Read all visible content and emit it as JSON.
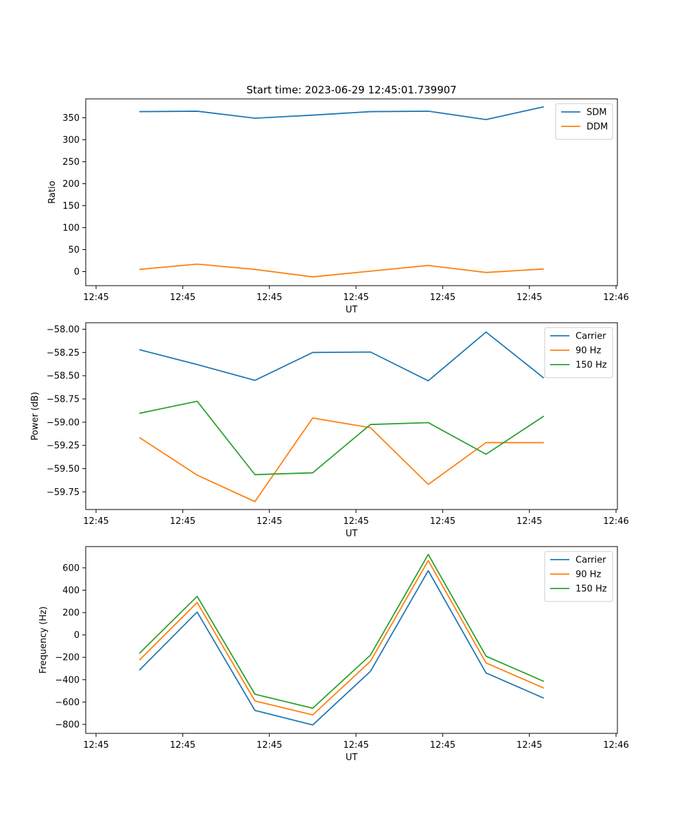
{
  "figure": {
    "title": "Start time: 2023-06-29 12:45:01.739907"
  },
  "chart_data": [
    {
      "type": "line",
      "title": "Start time: 2023-06-29 12:45:01.739907",
      "xlabel": "UT",
      "ylabel": "Ratio",
      "x_tick_labels": [
        "12:45",
        "12:45",
        "12:45",
        "12:45",
        "12:45",
        "12:45",
        "12:46"
      ],
      "y_ticks": [
        0,
        50,
        100,
        150,
        200,
        250,
        300,
        350
      ],
      "ylim": [
        -32,
        393
      ],
      "legend_position": "top-right",
      "grid": false,
      "series": [
        {
          "name": "SDM",
          "color": "#1f77b4",
          "values": [
            364,
            365,
            349,
            356,
            364,
            365,
            346,
            375
          ]
        },
        {
          "name": "DDM",
          "color": "#ff7f0e",
          "values": [
            5,
            17,
            5,
            -12,
            1,
            14,
            -2,
            6
          ]
        }
      ]
    },
    {
      "type": "line",
      "title": "",
      "xlabel": "UT",
      "ylabel": "Power (dB)",
      "x_tick_labels": [
        "12:45",
        "12:45",
        "12:45",
        "12:45",
        "12:45",
        "12:45",
        "12:46"
      ],
      "y_ticks": [
        -59.75,
        -59.5,
        -59.25,
        -59.0,
        -58.75,
        -58.5,
        -58.25,
        -58.0
      ],
      "y_tick_labels": [
        "−59.75",
        "−59.50",
        "−59.25",
        "−59.00",
        "−58.75",
        "−58.50",
        "−58.25",
        "−58.00"
      ],
      "ylim": [
        -59.94,
        -57.93
      ],
      "legend_position": "top-right",
      "grid": false,
      "series": [
        {
          "name": "Carrier",
          "color": "#1f77b4",
          "values": [
            -58.22,
            -58.38,
            -58.55,
            -58.25,
            -58.245,
            -58.555,
            -58.03,
            -58.525
          ]
        },
        {
          "name": "90 Hz",
          "color": "#ff7f0e",
          "values": [
            -59.165,
            -59.57,
            -59.855,
            -58.955,
            -59.06,
            -59.67,
            -59.22,
            -59.22
          ]
        },
        {
          "name": "150 Hz",
          "color": "#2ca02c",
          "values": [
            -58.905,
            -58.775,
            -59.565,
            -59.545,
            -59.025,
            -59.005,
            -59.345,
            -58.935
          ]
        }
      ]
    },
    {
      "type": "line",
      "title": "",
      "xlabel": "UT",
      "ylabel": "Frequency (Hz)",
      "x_tick_labels": [
        "12:45",
        "12:45",
        "12:45",
        "12:45",
        "12:45",
        "12:45",
        "12:46"
      ],
      "y_ticks": [
        -800,
        -600,
        -400,
        -200,
        0,
        200,
        400,
        600
      ],
      "y_tick_labels": [
        "−800",
        "−600",
        "−400",
        "−200",
        "0",
        "200",
        "400",
        "600"
      ],
      "ylim": [
        -880,
        790
      ],
      "legend_position": "top-right",
      "grid": false,
      "series": [
        {
          "name": "Carrier",
          "color": "#1f77b4",
          "values": [
            -315,
            205,
            -675,
            -805,
            -325,
            575,
            -340,
            -565
          ]
        },
        {
          "name": "90 Hz",
          "color": "#ff7f0e",
          "values": [
            -225,
            290,
            -590,
            -715,
            -235,
            665,
            -250,
            -475
          ]
        },
        {
          "name": "150 Hz",
          "color": "#2ca02c",
          "values": [
            -165,
            345,
            -530,
            -655,
            -180,
            720,
            -190,
            -415
          ]
        }
      ]
    }
  ]
}
